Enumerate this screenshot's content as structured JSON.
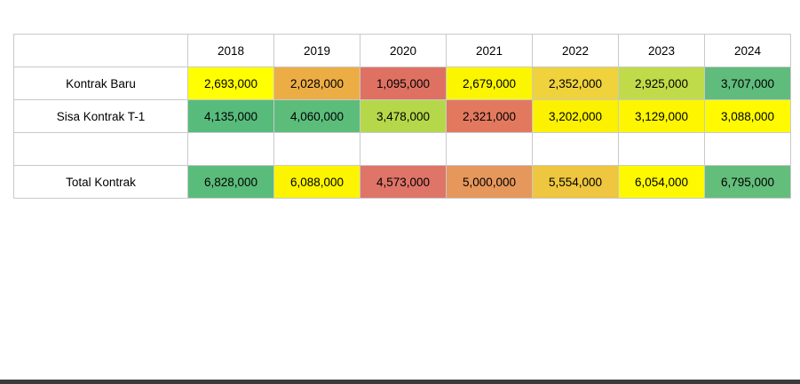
{
  "page": {
    "background_color": "#ffffff",
    "bottom_bar_color": "#3b3b3b",
    "grid_border_color": "#c9c9c9"
  },
  "chart_data": {
    "type": "table",
    "title": "",
    "legend": "none",
    "grid": "on",
    "columns": [
      "",
      "2018",
      "2019",
      "2020",
      "2021",
      "2022",
      "2023",
      "2024"
    ],
    "rows": [
      {
        "label": "Kontrak Baru",
        "values": [
          2693000,
          2028000,
          1095000,
          2679000,
          2352000,
          2925000,
          3707000
        ],
        "display": [
          "2,693,000",
          "2,028,000",
          "1,095,000",
          "2,679,000",
          "2,352,000",
          "2,925,000",
          "3,707,000"
        ],
        "colors": [
          "#FFFF00",
          "#EDAD45",
          "#DF7163",
          "#FBF500",
          "#EFD23C",
          "#C0DB49",
          "#5FBC7C"
        ]
      },
      {
        "label": "Sisa Kontrak T-1",
        "values": [
          4135000,
          4060000,
          3478000,
          2321000,
          3202000,
          3129000,
          3088000
        ],
        "display": [
          "4,135,000",
          "4,060,000",
          "3,478,000",
          "2,321,000",
          "3,202,000",
          "3,129,000",
          "3,088,000"
        ],
        "colors": [
          "#57BB7C",
          "#5CBD7B",
          "#B5D84A",
          "#E2795F",
          "#FCF100",
          "#FEF600",
          "#FFFA00"
        ]
      },
      {
        "label": "",
        "values": [
          null,
          null,
          null,
          null,
          null,
          null,
          null
        ],
        "display": [
          "",
          "",
          "",
          "",
          "",
          "",
          ""
        ],
        "colors": [
          "",
          "",
          "",
          "",
          "",
          "",
          ""
        ]
      },
      {
        "label": "Total Kontrak",
        "values": [
          6828000,
          6088000,
          4573000,
          5000000,
          5554000,
          6054000,
          6795000
        ],
        "display": [
          "6,828,000",
          "6,088,000",
          "4,573,000",
          "5,000,000",
          "5,554,000",
          "6,054,000",
          "6,795,000"
        ],
        "colors": [
          "#5ABC7A",
          "#FCF400",
          "#DF7468",
          "#E6975C",
          "#EEC63F",
          "#FEF900",
          "#63BE7B"
        ]
      }
    ]
  }
}
